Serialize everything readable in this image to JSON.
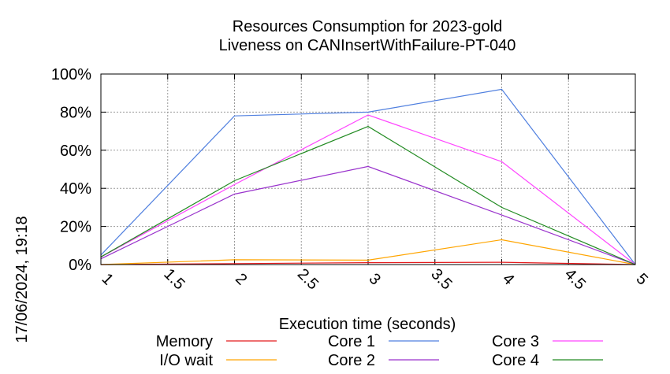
{
  "chart_data": {
    "type": "line",
    "title_line1": "Resources Consumption for 2023-gold",
    "title_line2": "Liveness on CANInsertWithFailure-PT-040",
    "xlabel": "Execution time (seconds)",
    "ylabel": "",
    "side_label": "17/06/2024, 19:18",
    "xlim": [
      1,
      5
    ],
    "ylim": [
      0,
      100
    ],
    "x_ticks": [
      "1",
      "1.5",
      "2",
      "2.5",
      "3",
      "3.5",
      "4",
      "4.5",
      "5"
    ],
    "y_ticks": [
      "0%",
      "20%",
      "40%",
      "60%",
      "80%",
      "100%"
    ],
    "grid": true,
    "legend_position": "bottom",
    "x": [
      1,
      2,
      3,
      4,
      5
    ],
    "series": [
      {
        "name": "Memory",
        "color": "#e41a1c",
        "values": [
          0,
          0.5,
          1,
          1.2,
          0
        ]
      },
      {
        "name": "I/O wait",
        "color": "#ffa500",
        "values": [
          0,
          2.5,
          2.3,
          13,
          0
        ]
      },
      {
        "name": "Core 1",
        "color": "#4f7fdf",
        "values": [
          5,
          78,
          80,
          92,
          0
        ]
      },
      {
        "name": "Core 2",
        "color": "#9932cc",
        "values": [
          3,
          37,
          51.5,
          26,
          0
        ]
      },
      {
        "name": "Core 3",
        "color": "#ff44ff",
        "values": [
          4,
          42,
          78.5,
          54,
          0
        ]
      },
      {
        "name": "Core 4",
        "color": "#228b22",
        "values": [
          4,
          44,
          72.5,
          30,
          0
        ]
      }
    ]
  }
}
